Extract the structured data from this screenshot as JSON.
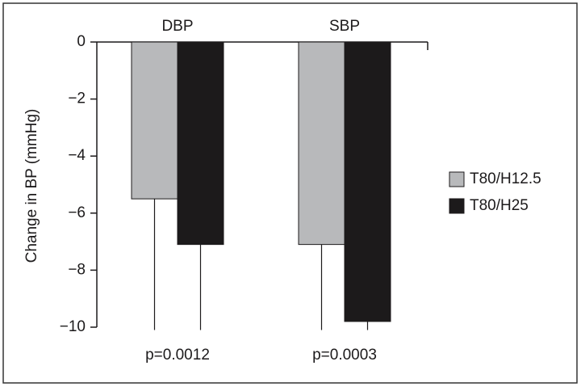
{
  "chart_data": {
    "type": "bar",
    "ylabel": "Change in BP (mmHg)",
    "categories": [
      "DBP",
      "SBP"
    ],
    "series": [
      {
        "name": "T80/H12.5",
        "color": "#b8b9bb",
        "values": [
          -5.5,
          -7.1
        ],
        "errors": [
          4.6,
          3.0
        ]
      },
      {
        "name": "T80/H25",
        "color": "#1c1a1b",
        "values": [
          -7.1,
          -9.8
        ],
        "errors": [
          3.0,
          0.3
        ]
      }
    ],
    "annotations": [
      "p=0.0012",
      "p=0.0003"
    ],
    "ylim": [
      0,
      -10
    ],
    "yticks": [
      0,
      {
        "value": -2,
        "label": "−2"
      },
      {
        "value": -4,
        "label": "−4"
      },
      {
        "value": -6,
        "label": "−6"
      },
      {
        "value": -8,
        "label": "−8"
      },
      {
        "value": -10,
        "label": "−10"
      }
    ],
    "legend": "right",
    "grid": false
  }
}
